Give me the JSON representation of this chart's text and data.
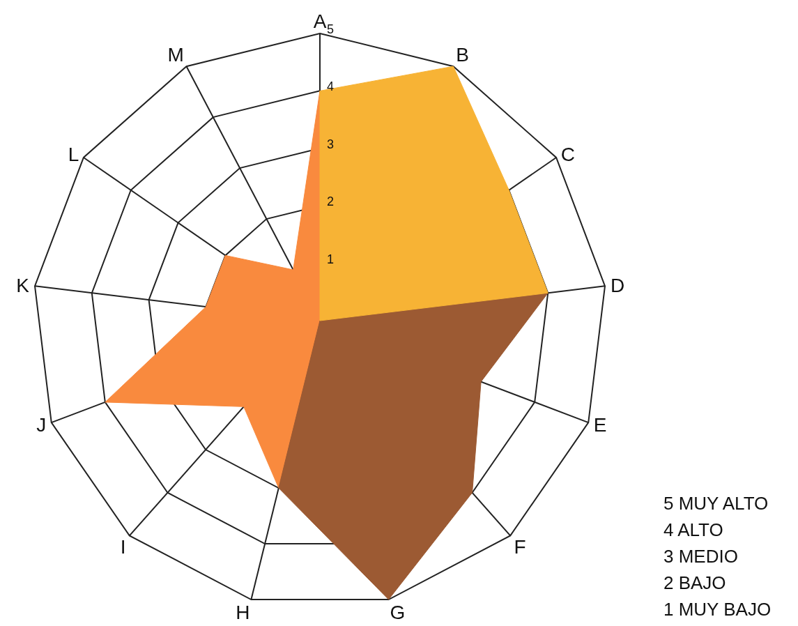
{
  "chart_data": {
    "type": "radar",
    "categories": [
      "A",
      "B",
      "C",
      "D",
      "E",
      "F",
      "G",
      "H",
      "I",
      "J",
      "K",
      "L",
      "M"
    ],
    "series": [
      {
        "color": "#f7b335",
        "values": [
          4,
          5,
          4,
          4,
          null,
          null,
          null,
          null,
          null,
          null,
          null,
          null,
          null
        ]
      },
      {
        "color": "#9c5a33",
        "values": [
          null,
          null,
          null,
          4,
          3,
          4,
          5,
          3,
          null,
          null,
          null,
          null,
          null
        ]
      },
      {
        "color": "#f98a3e",
        "values": [
          4,
          null,
          null,
          null,
          null,
          null,
          null,
          3,
          2,
          4,
          2,
          2,
          1
        ]
      }
    ],
    "ylim": [
      0,
      5
    ],
    "yticks": [
      1,
      2,
      3,
      4,
      5
    ],
    "grid": true,
    "legend": false,
    "annotations": [
      "5 MUY ALTO",
      "4 ALTO",
      "3 MEDIO",
      "2 BAJO",
      "1 MUY BAJO"
    ]
  }
}
